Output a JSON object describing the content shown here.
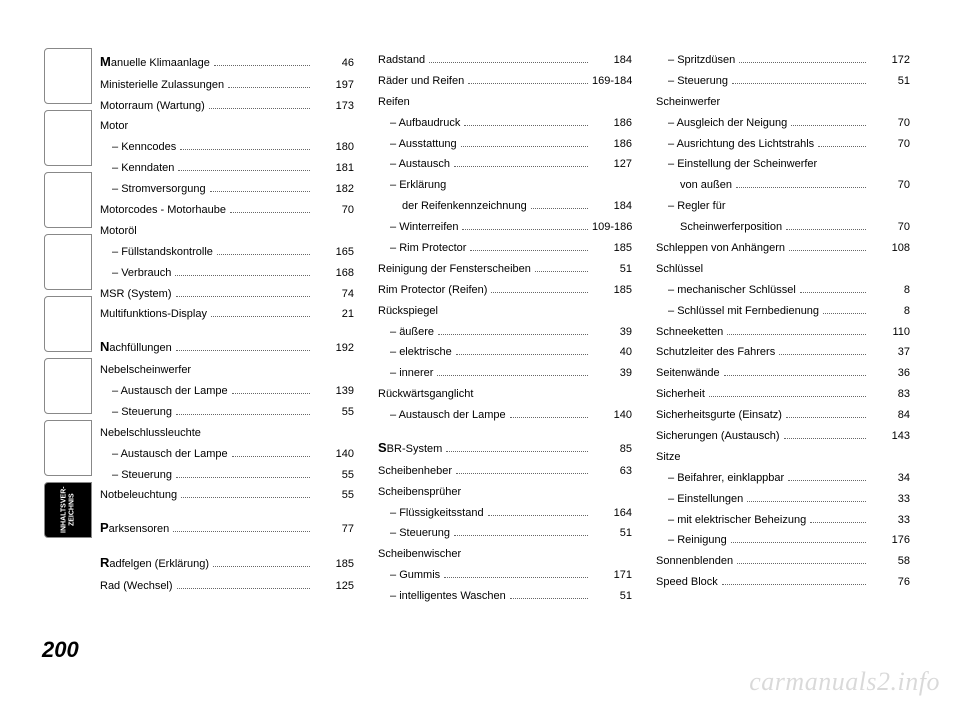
{
  "pageNumber": "200",
  "watermark": "carmanuals2.info",
  "tabs": [
    {
      "label": " "
    },
    {
      "label": " "
    },
    {
      "label": " "
    },
    {
      "label": " "
    },
    {
      "label": " "
    },
    {
      "label": " "
    },
    {
      "label": " "
    },
    {
      "label": "INHALTSVER-\nZEICHNIS",
      "active": true
    }
  ],
  "columns": [
    [
      {
        "t": "entry",
        "initial": "M",
        "label": "anuelle Klimaanlage",
        "page": "46"
      },
      {
        "t": "entry",
        "label": "Ministerielle Zulassungen",
        "page": "197"
      },
      {
        "t": "entry",
        "label": "Motorraum (Wartung)",
        "page": "173"
      },
      {
        "t": "heading",
        "label": "Motor"
      },
      {
        "t": "sub",
        "label": "Kenncodes",
        "page": "180"
      },
      {
        "t": "sub",
        "label": "Kenndaten",
        "page": "181"
      },
      {
        "t": "sub",
        "label": "Stromversorgung",
        "page": "182"
      },
      {
        "t": "entry",
        "label": "Motorcodes - Motorhaube",
        "page": "70"
      },
      {
        "t": "heading",
        "label": "Motoröl"
      },
      {
        "t": "sub",
        "label": "Füllstandskontrolle",
        "page": "165"
      },
      {
        "t": "sub",
        "label": "Verbrauch",
        "page": "168"
      },
      {
        "t": "entry",
        "label": "MSR (System)",
        "page": "74"
      },
      {
        "t": "entry",
        "label": "Multifunktions-Display",
        "page": "21"
      },
      {
        "t": "spacer"
      },
      {
        "t": "entry",
        "initial": "N",
        "label": "achfüllungen",
        "page": "192"
      },
      {
        "t": "heading",
        "label": "Nebelscheinwerfer"
      },
      {
        "t": "sub",
        "label": "Austausch der Lampe",
        "page": "139"
      },
      {
        "t": "sub",
        "label": "Steuerung",
        "page": "55"
      },
      {
        "t": "heading",
        "label": "Nebelschlussleuchte"
      },
      {
        "t": "sub",
        "label": "Austausch der Lampe",
        "page": "140"
      },
      {
        "t": "sub",
        "label": "Steuerung",
        "page": "55"
      },
      {
        "t": "entry",
        "label": "Notbeleuchtung",
        "page": "55"
      },
      {
        "t": "spacer"
      },
      {
        "t": "entry",
        "initial": "P",
        "label": "arksensoren",
        "page": "77"
      },
      {
        "t": "spacer"
      },
      {
        "t": "entry",
        "initial": "R",
        "label": "adfelgen (Erklärung)",
        "page": "185"
      },
      {
        "t": "entry",
        "label": "Rad (Wechsel)",
        "page": "125"
      }
    ],
    [
      {
        "t": "entry",
        "label": "Radstand",
        "page": "184"
      },
      {
        "t": "entry",
        "label": "Räder und Reifen",
        "page": "169-184"
      },
      {
        "t": "heading",
        "label": "Reifen"
      },
      {
        "t": "sub",
        "label": "Aufbaudruck",
        "page": "186"
      },
      {
        "t": "sub",
        "label": "Ausstattung",
        "page": "186"
      },
      {
        "t": "sub",
        "label": "Austausch",
        "page": "127"
      },
      {
        "t": "sub2",
        "label": "Erklärung",
        "label2": "der Reifenkennzeichnung",
        "page": "184"
      },
      {
        "t": "sub",
        "label": "Winterreifen",
        "page": "109-186"
      },
      {
        "t": "sub",
        "label": "Rim Protector",
        "page": "185"
      },
      {
        "t": "entry",
        "label": "Reinigung der Fensterscheiben",
        "page": "51"
      },
      {
        "t": "entry",
        "label": "Rim Protector (Reifen)",
        "page": "185"
      },
      {
        "t": "heading",
        "label": "Rückspiegel"
      },
      {
        "t": "sub",
        "label": "äußere",
        "page": "39"
      },
      {
        "t": "sub",
        "label": "elektrische",
        "page": "40"
      },
      {
        "t": "sub",
        "label": "innerer",
        "page": "39"
      },
      {
        "t": "heading",
        "label": "Rückwärtsganglicht"
      },
      {
        "t": "sub",
        "label": "Austausch der Lampe",
        "page": "140"
      },
      {
        "t": "spacer"
      },
      {
        "t": "entry",
        "initial": "S",
        "label": "BR-System",
        "page": "85"
      },
      {
        "t": "entry",
        "label": "Scheibenheber",
        "page": "63"
      },
      {
        "t": "heading",
        "label": "Scheibensprüher"
      },
      {
        "t": "sub",
        "label": "Flüssigkeitsstand",
        "page": "164"
      },
      {
        "t": "sub",
        "label": "Steuerung",
        "page": "51"
      },
      {
        "t": "heading",
        "label": "Scheibenwischer"
      },
      {
        "t": "sub",
        "label": "Gummis",
        "page": "171"
      },
      {
        "t": "sub",
        "label": "intelligentes Waschen",
        "page": "51"
      }
    ],
    [
      {
        "t": "sub",
        "label": "Spritzdüsen",
        "page": "172"
      },
      {
        "t": "sub",
        "label": "Steuerung",
        "page": "51"
      },
      {
        "t": "heading",
        "label": "Scheinwerfer"
      },
      {
        "t": "sub",
        "label": "Ausgleich der Neigung",
        "page": "70"
      },
      {
        "t": "sub",
        "label": "Ausrichtung des Lichtstrahls",
        "page": "70"
      },
      {
        "t": "sub2",
        "label": "Einstellung der Scheinwerfer",
        "label2": "von außen",
        "page": "70"
      },
      {
        "t": "sub2",
        "label": "Regler für",
        "label2": "Scheinwerferposition",
        "page": "70"
      },
      {
        "t": "entry",
        "label": "Schleppen von Anhängern",
        "page": "108"
      },
      {
        "t": "heading",
        "label": "Schlüssel"
      },
      {
        "t": "sub",
        "label": "mechanischer Schlüssel",
        "page": "8"
      },
      {
        "t": "sub",
        "label": "Schlüssel mit Fernbedienung",
        "page": "8"
      },
      {
        "t": "entry",
        "label": "Schneeketten",
        "page": "110"
      },
      {
        "t": "entry",
        "label": "Schutzleiter des Fahrers",
        "page": "37"
      },
      {
        "t": "entry",
        "label": "Seitenwände",
        "page": "36"
      },
      {
        "t": "entry",
        "label": "Sicherheit",
        "page": "83"
      },
      {
        "t": "entry",
        "label": "Sicherheitsgurte (Einsatz)",
        "page": "84"
      },
      {
        "t": "entry",
        "label": "Sicherungen (Austausch)",
        "page": "143"
      },
      {
        "t": "heading",
        "label": "Sitze"
      },
      {
        "t": "sub",
        "label": "Beifahrer, einklappbar",
        "page": "34"
      },
      {
        "t": "sub",
        "label": "Einstellungen",
        "page": "33"
      },
      {
        "t": "sub",
        "label": "mit elektrischer Beheizung",
        "page": "33"
      },
      {
        "t": "sub",
        "label": "Reinigung",
        "page": "176"
      },
      {
        "t": "entry",
        "label": "Sonnenblenden",
        "page": "58"
      },
      {
        "t": "entry",
        "label": "Speed Block",
        "page": "76"
      }
    ]
  ]
}
